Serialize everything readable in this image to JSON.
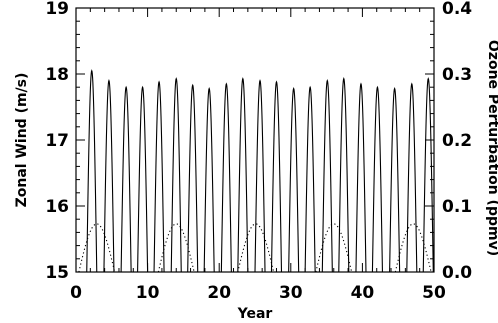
{
  "chart_data": {
    "type": "line",
    "xlabel": "Year",
    "ylabel": "Zonal Wind (m/s)",
    "y2label": "Ozone Perturbation (ppmv)",
    "xlim": [
      0,
      50
    ],
    "ylim": [
      15,
      19
    ],
    "y2lim": [
      0,
      0.4
    ],
    "x_ticks": [
      "0",
      "10",
      "20",
      "30",
      "40",
      "50"
    ],
    "y_ticks": [
      "15",
      "16",
      "17",
      "18",
      "19"
    ],
    "y2_ticks": [
      "0.0",
      "0.1",
      "0.2",
      "0.3",
      "0.4"
    ],
    "series": [
      {
        "axis": "left",
        "style": "solid",
        "pulse_width_years": 1.4,
        "peaks": [
          {
            "x": 2.2,
            "y": 18.05
          },
          {
            "x": 4.6,
            "y": 17.9
          },
          {
            "x": 7.0,
            "y": 17.8
          },
          {
            "x": 9.3,
            "y": 17.8
          },
          {
            "x": 11.6,
            "y": 17.88
          },
          {
            "x": 14.0,
            "y": 17.93
          },
          {
            "x": 16.3,
            "y": 17.83
          },
          {
            "x": 18.6,
            "y": 17.78
          },
          {
            "x": 21.0,
            "y": 17.85
          },
          {
            "x": 23.3,
            "y": 17.93
          },
          {
            "x": 25.7,
            "y": 17.9
          },
          {
            "x": 28.0,
            "y": 17.88
          },
          {
            "x": 30.4,
            "y": 17.78
          },
          {
            "x": 32.7,
            "y": 17.8
          },
          {
            "x": 35.1,
            "y": 17.9
          },
          {
            "x": 37.4,
            "y": 17.93
          },
          {
            "x": 39.8,
            "y": 17.85
          },
          {
            "x": 42.1,
            "y": 17.8
          },
          {
            "x": 44.5,
            "y": 17.78
          },
          {
            "x": 46.9,
            "y": 17.85
          },
          {
            "x": 49.2,
            "y": 17.93
          }
        ]
      },
      {
        "axis": "right",
        "style": "dotted",
        "pulse_width_years": 5.0,
        "peaks": [
          {
            "x": 2.9,
            "y": 0.073
          },
          {
            "x": 14.0,
            "y": 0.073
          },
          {
            "x": 25.1,
            "y": 0.073
          },
          {
            "x": 36.0,
            "y": 0.073
          },
          {
            "x": 47.1,
            "y": 0.073
          }
        ]
      }
    ]
  }
}
